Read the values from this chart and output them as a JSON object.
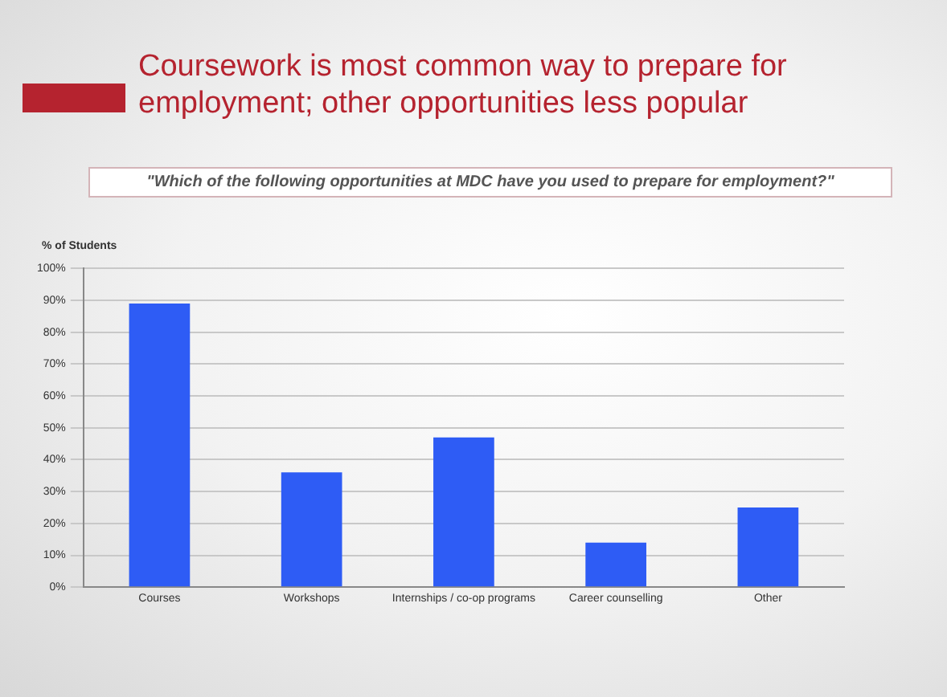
{
  "chart_data": {
    "type": "bar",
    "title": "Coursework is most common way to prepare for employment; other opportunities less popular",
    "subtitle": "\"Which of the following opportunities at MDC have you used to prepare for employment?\"",
    "ylabel": "% of Students",
    "categories": [
      "Courses",
      "Workshops",
      "Internships / co-op programs",
      "Career counselling",
      "Other"
    ],
    "values": [
      89,
      36,
      47,
      14,
      25
    ],
    "color": "#2e5cf5",
    "ylim": [
      0,
      100
    ],
    "yticks": [
      {
        "value": 0,
        "label": "0%"
      },
      {
        "value": 10,
        "label": "10%"
      },
      {
        "value": 20,
        "label": "20%"
      },
      {
        "value": 30,
        "label": "30%"
      },
      {
        "value": 40,
        "label": "40%"
      },
      {
        "value": 50,
        "label": "50%"
      },
      {
        "value": 60,
        "label": "60%"
      },
      {
        "value": 70,
        "label": "70%"
      },
      {
        "value": 80,
        "label": "80%"
      },
      {
        "value": 90,
        "label": "90%"
      },
      {
        "value": 100,
        "label": "100%"
      }
    ],
    "grid": "y",
    "legend": false
  }
}
